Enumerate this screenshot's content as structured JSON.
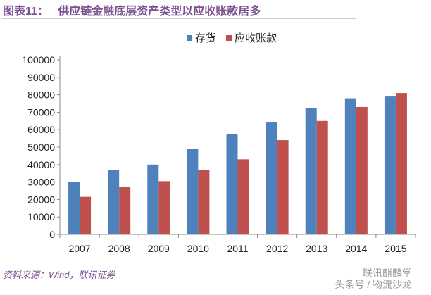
{
  "header": {
    "title": "图表11：   供应链金融底层资产类型以应收账款居多"
  },
  "footer": {
    "source": "资料来源：Wind，联讯证券",
    "watermark_line1": "联讯麒麟堂",
    "watermark_line2": "头条号 / 物流沙龙"
  },
  "chart_data": {
    "type": "bar",
    "title": "供应链金融底层资产类型以应收账款居多",
    "categories": [
      "2007",
      "2008",
      "2009",
      "2010",
      "2011",
      "2012",
      "2013",
      "2014",
      "2015"
    ],
    "series": [
      {
        "name": "存货",
        "color": "#4f81bd",
        "values": [
          30000,
          37000,
          40000,
          49000,
          57500,
          64500,
          72500,
          78000,
          79000
        ]
      },
      {
        "name": "应收账款",
        "color": "#c0504d",
        "values": [
          21500,
          27000,
          30500,
          37000,
          43000,
          54000,
          65000,
          73000,
          81000
        ]
      }
    ],
    "ylim": [
      0,
      100000
    ],
    "yticks": [
      0,
      10000,
      20000,
      30000,
      40000,
      50000,
      60000,
      70000,
      80000,
      90000,
      100000
    ],
    "legend": "top-center",
    "grid": false,
    "xlabel": "",
    "ylabel": ""
  }
}
